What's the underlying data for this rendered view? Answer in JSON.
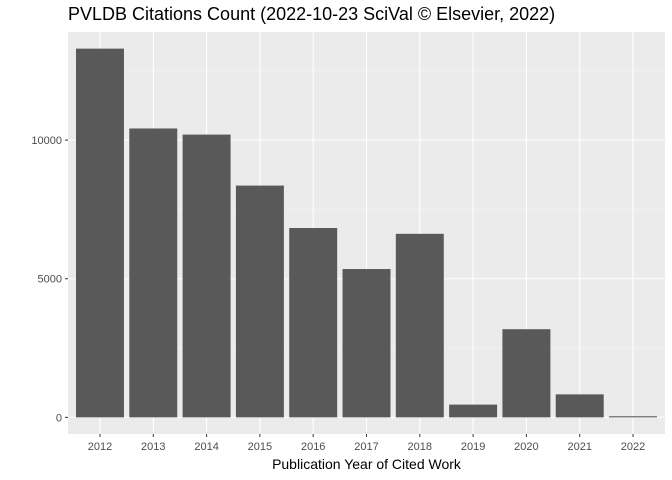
{
  "chart_data": {
    "type": "bar",
    "title": "PVLDB Citations Count (2022-10-23 SciVal © Elsevier, 2022)",
    "xlabel": "Publication Year of Cited Work",
    "ylabel": "",
    "categories": [
      "2012",
      "2013",
      "2014",
      "2015",
      "2016",
      "2017",
      "2018",
      "2019",
      "2020",
      "2021",
      "2022"
    ],
    "values": [
      13300,
      10420,
      10200,
      8360,
      6830,
      5350,
      6620,
      460,
      3180,
      830,
      40
    ],
    "y_ticks": [
      0,
      5000,
      10000
    ],
    "y_tick_labels": [
      "0",
      "5000",
      "10000"
    ],
    "ylim": [
      -600,
      13900
    ],
    "grid": true,
    "colors": {
      "bar": "#595959",
      "panel": "#ebebeb",
      "grid_major": "#ffffff",
      "grid_minor": "#f5f5f5",
      "tick_text": "#4d4d4d"
    }
  }
}
